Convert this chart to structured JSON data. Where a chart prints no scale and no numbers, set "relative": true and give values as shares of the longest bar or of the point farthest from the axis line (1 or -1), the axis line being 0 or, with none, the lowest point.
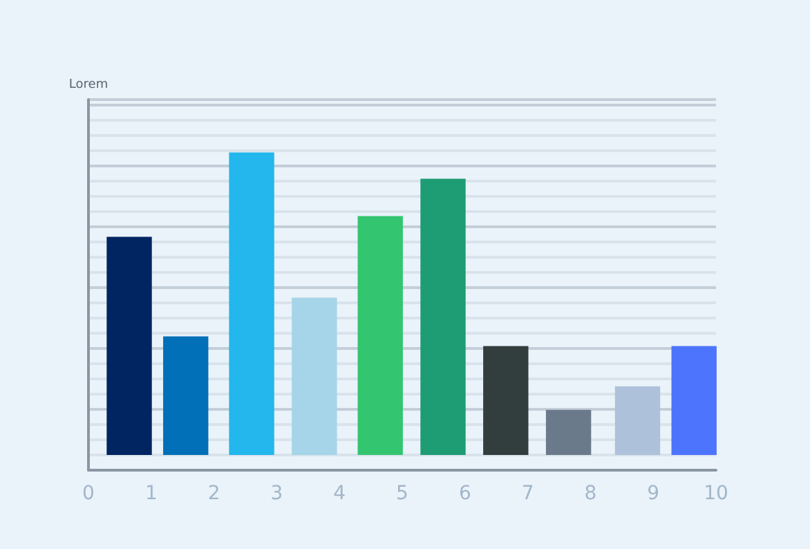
{
  "chart_data": {
    "type": "bar",
    "ylabel": "Lorem",
    "relative": true,
    "x": [
      0.65,
      1.55,
      2.6,
      3.6,
      4.65,
      5.65,
      6.65,
      7.65,
      8.75,
      9.65
    ],
    "values": [
      0.721,
      0.392,
      1,
      0.52,
      0.79,
      0.913,
      0.36,
      0.149,
      0.227,
      0.36
    ],
    "colors": [
      "#002561",
      "#0270b8",
      "#23b7ed",
      "#a6d4e8",
      "#33c56f",
      "#1e9c74",
      "#323d3d",
      "#6b7a8b",
      "#adc1da",
      "#4c74fc"
    ],
    "xlim": [
      0,
      10
    ],
    "xticks": [
      0,
      1,
      2,
      3,
      4,
      5,
      6,
      7,
      8,
      9,
      10
    ],
    "grid": "y"
  }
}
